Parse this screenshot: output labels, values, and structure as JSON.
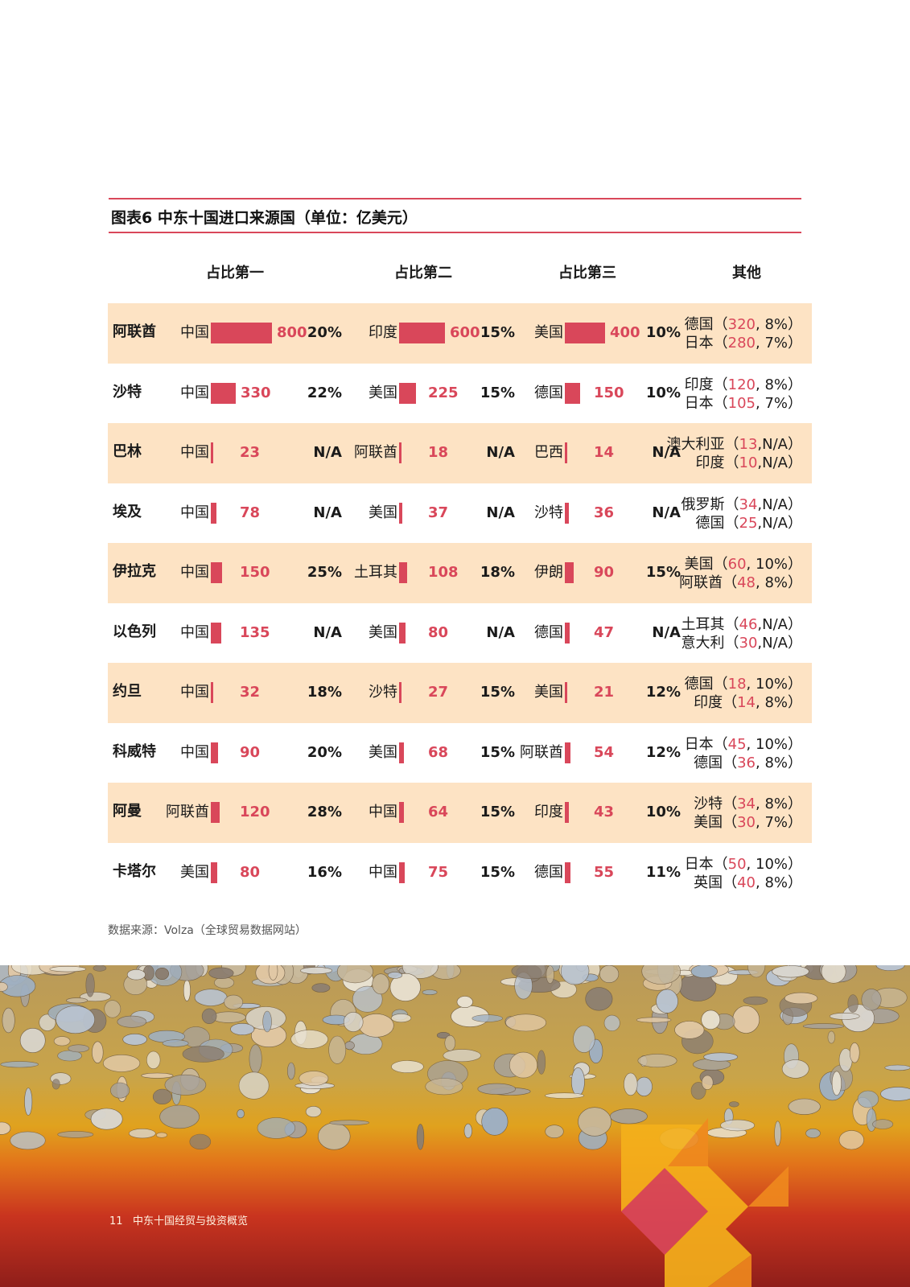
{
  "figure": {
    "title": "图表6  中东十国进口来源国（单位：亿美元）"
  },
  "headers": [
    "占比第一",
    "占比第二",
    "占比第三",
    "其他"
  ],
  "rows": [
    {
      "country": "阿联酋",
      "shaded": true,
      "first": {
        "src": "中国",
        "val": "800",
        "num": 800,
        "pct": "20%"
      },
      "second": {
        "src": "印度",
        "val": "600",
        "num": 600,
        "pct": "15%"
      },
      "third": {
        "src": "美国",
        "val": "400",
        "num": 400,
        "pct": "10%"
      },
      "others": [
        {
          "name": "德国",
          "val": "320",
          "rest": ", 8%"
        },
        {
          "name": "日本",
          "val": "280",
          "rest": ", 7%"
        }
      ]
    },
    {
      "country": "沙特",
      "shaded": false,
      "first": {
        "src": "中国",
        "val": "330",
        "num": 330,
        "pct": "22%"
      },
      "second": {
        "src": "美国",
        "val": "225",
        "num": 225,
        "pct": "15%"
      },
      "third": {
        "src": "德国",
        "val": "150",
        "num": 150,
        "pct": "10%"
      },
      "others": [
        {
          "name": "印度",
          "val": "120",
          "rest": ", 8%"
        },
        {
          "name": "日本",
          "val": "105",
          "rest": ", 7%"
        }
      ]
    },
    {
      "country": "巴林",
      "shaded": true,
      "first": {
        "src": "中国",
        "val": "23",
        "num": 23,
        "pct": "N/A"
      },
      "second": {
        "src": "阿联酋",
        "val": "18",
        "num": 18,
        "pct": "N/A"
      },
      "third": {
        "src": "巴西",
        "val": "14",
        "num": 14,
        "pct": "N/A"
      },
      "others": [
        {
          "name": "澳大利亚",
          "val": "13",
          "rest": ",N/A"
        },
        {
          "name": "印度",
          "val": "10",
          "rest": ",N/A"
        }
      ]
    },
    {
      "country": "埃及",
      "shaded": false,
      "first": {
        "src": "中国",
        "val": "78",
        "num": 78,
        "pct": "N/A"
      },
      "second": {
        "src": "美国",
        "val": "37",
        "num": 37,
        "pct": "N/A"
      },
      "third": {
        "src": "沙特",
        "val": "36",
        "num": 36,
        "pct": "N/A"
      },
      "others": [
        {
          "name": "俄罗斯",
          "val": "34",
          "rest": ",N/A"
        },
        {
          "name": "德国",
          "val": "25",
          "rest": ",N/A"
        }
      ]
    },
    {
      "country": "伊拉克",
      "shaded": true,
      "first": {
        "src": "中国",
        "val": "150",
        "num": 150,
        "pct": "25%"
      },
      "second": {
        "src": "土耳其",
        "val": "108",
        "num": 108,
        "pct": "18%"
      },
      "third": {
        "src": "伊朗",
        "val": "90",
        "num": 90,
        "pct": "15%"
      },
      "others": [
        {
          "name": "美国",
          "val": "60",
          "rest": ", 10%"
        },
        {
          "name": "阿联酋",
          "val": "48",
          "rest": ", 8%"
        }
      ]
    },
    {
      "country": "以色列",
      "shaded": false,
      "first": {
        "src": "中国",
        "val": "135",
        "num": 135,
        "pct": "N/A"
      },
      "second": {
        "src": "美国",
        "val": "80",
        "num": 80,
        "pct": "N/A"
      },
      "third": {
        "src": "德国",
        "val": "47",
        "num": 47,
        "pct": "N/A"
      },
      "others": [
        {
          "name": "土耳其",
          "val": "46",
          "rest": ",N/A"
        },
        {
          "name": "意大利",
          "val": "30",
          "rest": ",N/A"
        }
      ]
    },
    {
      "country": "约旦",
      "shaded": true,
      "first": {
        "src": "中国",
        "val": "32",
        "num": 32,
        "pct": "18%"
      },
      "second": {
        "src": "沙特",
        "val": "27",
        "num": 27,
        "pct": "15%"
      },
      "third": {
        "src": "美国",
        "val": "21",
        "num": 21,
        "pct": "12%"
      },
      "others": [
        {
          "name": "德国",
          "val": "18",
          "rest": ", 10%"
        },
        {
          "name": "印度",
          "val": "14",
          "rest": ", 8%"
        }
      ]
    },
    {
      "country": "科威特",
      "shaded": false,
      "first": {
        "src": "中国",
        "val": "90",
        "num": 90,
        "pct": "20%"
      },
      "second": {
        "src": "美国",
        "val": "68",
        "num": 68,
        "pct": "15%"
      },
      "third": {
        "src": "阿联酋",
        "val": "54",
        "num": 54,
        "pct": "12%"
      },
      "others": [
        {
          "name": "日本",
          "val": "45",
          "rest": ", 10%"
        },
        {
          "name": "德国",
          "val": "36",
          "rest": ", 8%"
        }
      ]
    },
    {
      "country": "阿曼",
      "shaded": true,
      "first": {
        "src": "阿联酋",
        "val": "120",
        "num": 120,
        "pct": "28%"
      },
      "second": {
        "src": "中国",
        "val": "64",
        "num": 64,
        "pct": "15%"
      },
      "third": {
        "src": "印度",
        "val": "43",
        "num": 43,
        "pct": "10%"
      },
      "others": [
        {
          "name": "沙特",
          "val": "34",
          "rest": ", 8%"
        },
        {
          "name": "美国",
          "val": "30",
          "rest": ", 7%"
        }
      ]
    },
    {
      "country": "卡塔尔",
      "shaded": false,
      "first": {
        "src": "美国",
        "val": "80",
        "num": 80,
        "pct": "16%"
      },
      "second": {
        "src": "中国",
        "val": "75",
        "num": 75,
        "pct": "15%"
      },
      "third": {
        "src": "德国",
        "val": "55",
        "num": 55,
        "pct": "11%"
      },
      "others": [
        {
          "name": "日本",
          "val": "50",
          "rest": ", 10%"
        },
        {
          "name": "英国",
          "val": "40",
          "rest": ", 8%"
        }
      ]
    }
  ],
  "source_note": "数据来源：Volza（全球贸易数据网站）",
  "footer": {
    "page": "11",
    "text": "中东十国经贸与投资概览"
  },
  "colors": {
    "accent": "#d9475a",
    "row_shade": "#fde3c4"
  }
}
